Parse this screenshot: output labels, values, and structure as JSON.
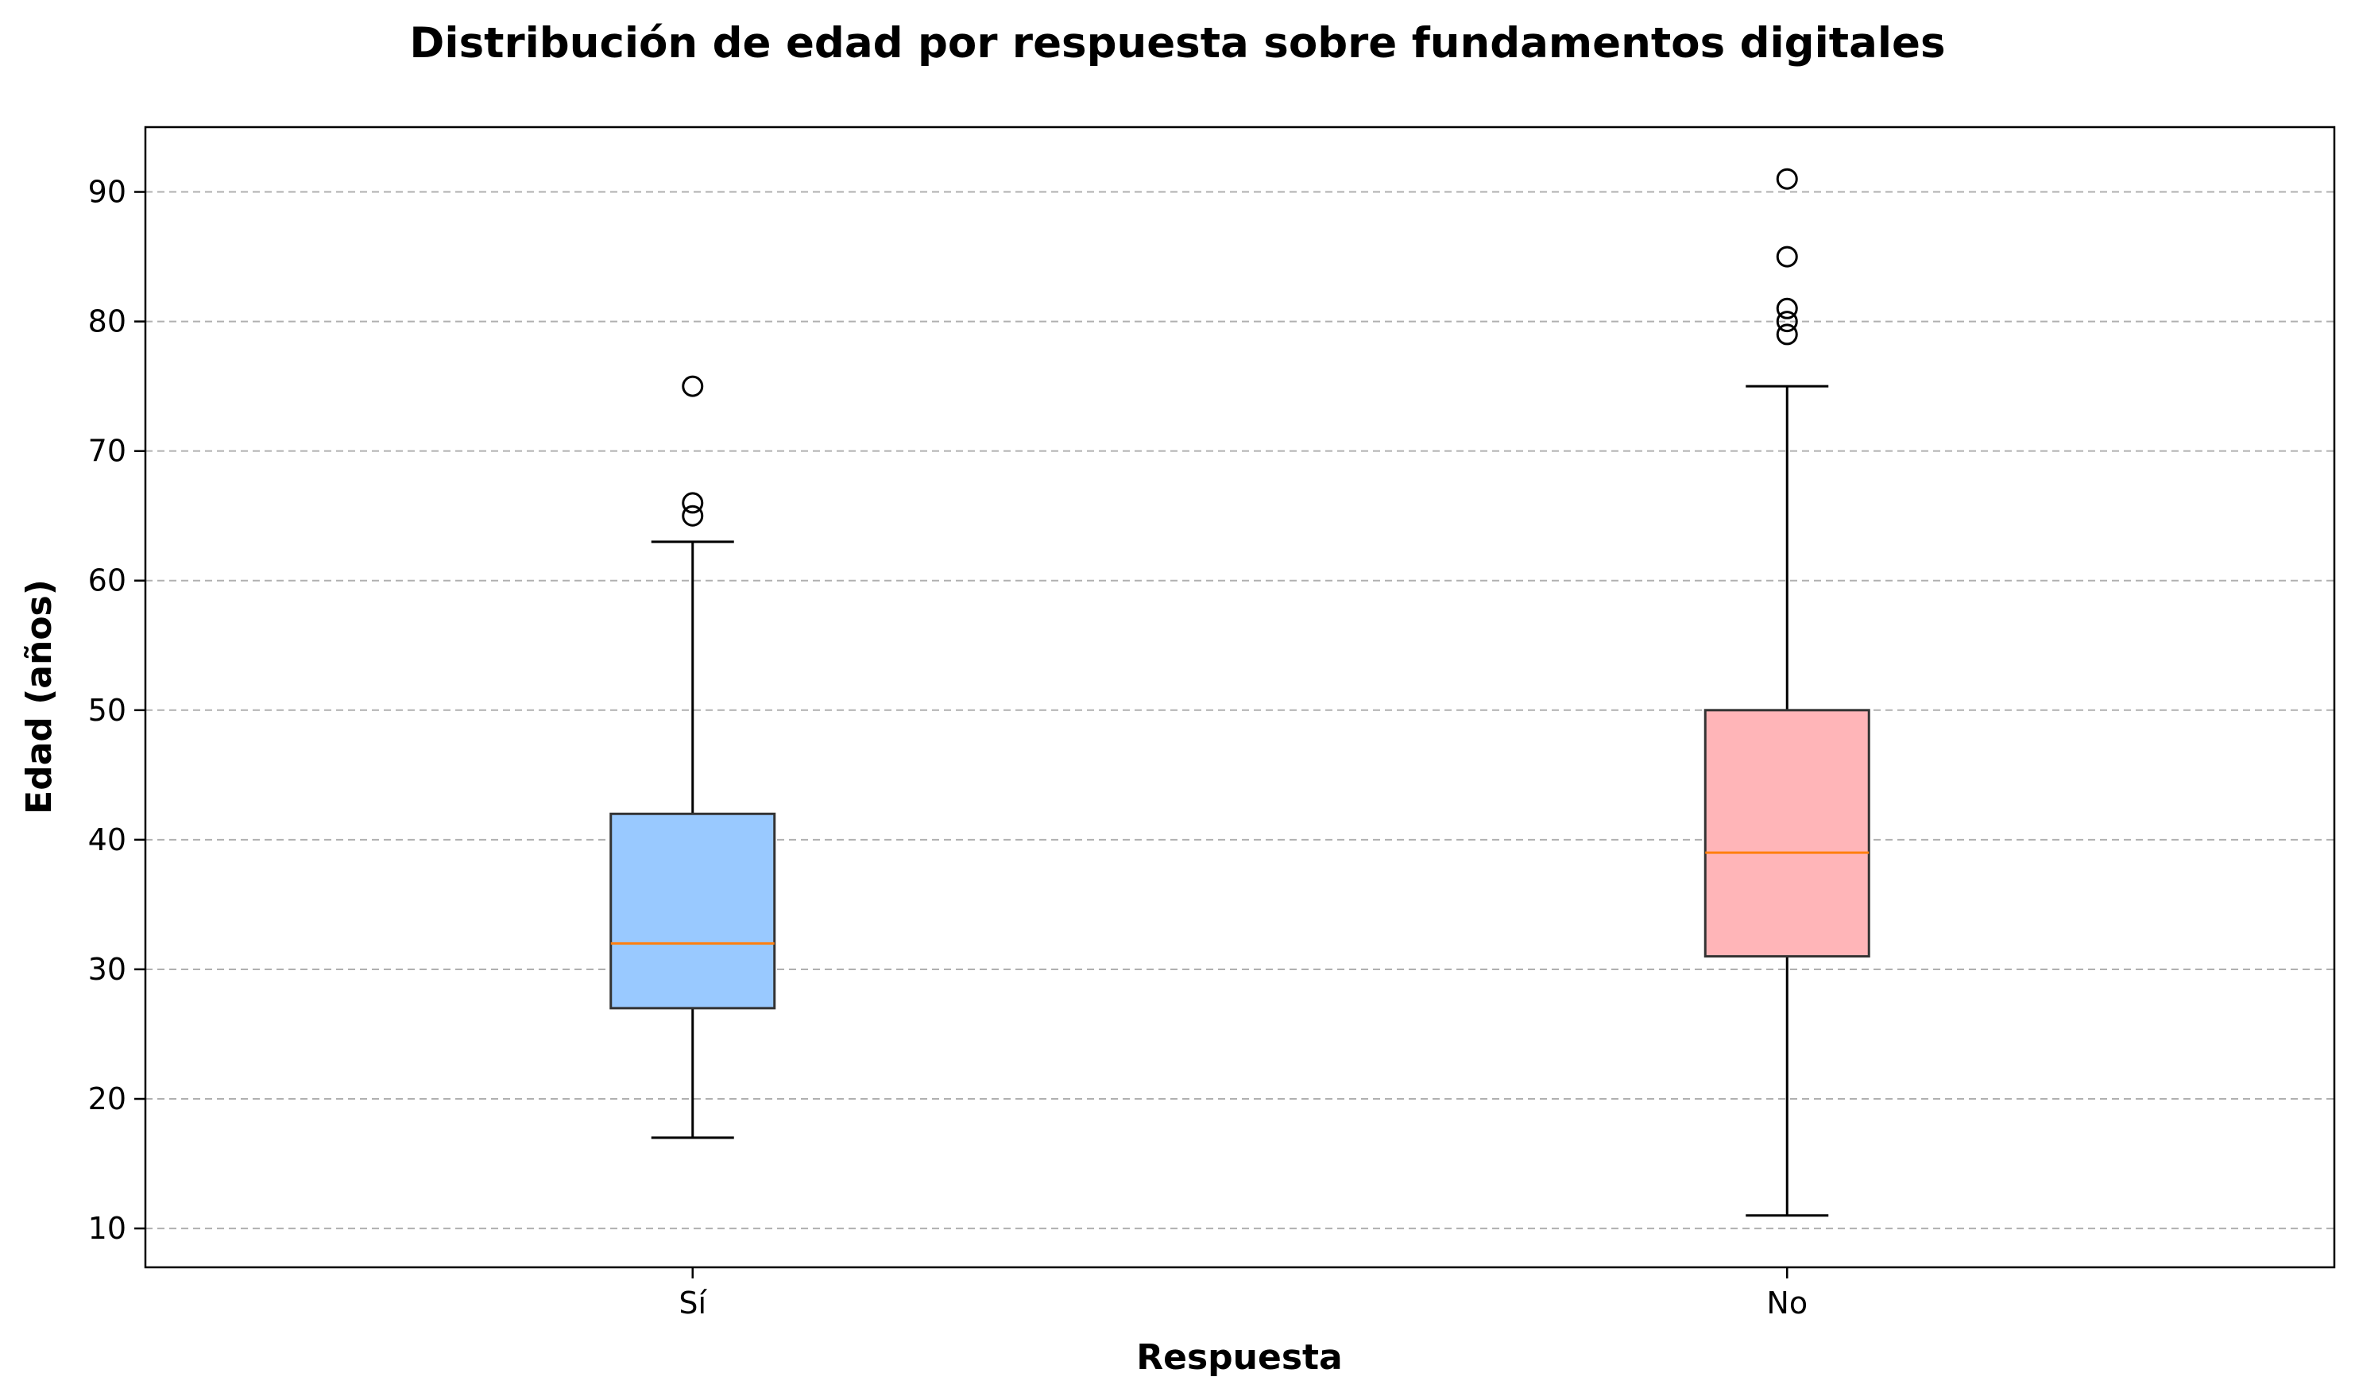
{
  "chart_data": {
    "type": "box",
    "title": "Distribución de edad por respuesta sobre fundamentos digitales",
    "xlabel": "Respuesta",
    "ylabel": "Edad (años)",
    "ylim": [
      7,
      95
    ],
    "yticks": [
      10,
      20,
      30,
      40,
      50,
      60,
      70,
      80,
      90
    ],
    "grid": {
      "y": true,
      "style": "dashed"
    },
    "categories": [
      "Sí",
      "No"
    ],
    "series": [
      {
        "category": "Sí",
        "whisker_low": 17,
        "q1": 27,
        "median": 32,
        "q3": 42,
        "whisker_high": 63,
        "outliers": [
          65,
          66,
          75
        ],
        "color": "#99c9ff"
      },
      {
        "category": "No",
        "whisker_low": 11,
        "q1": 31,
        "median": 39,
        "q3": 50,
        "whisker_high": 75,
        "outliers": [
          79,
          80,
          81,
          85,
          91
        ],
        "color": "#ffb5b8"
      }
    ],
    "median_color": "#ff7f0e"
  }
}
